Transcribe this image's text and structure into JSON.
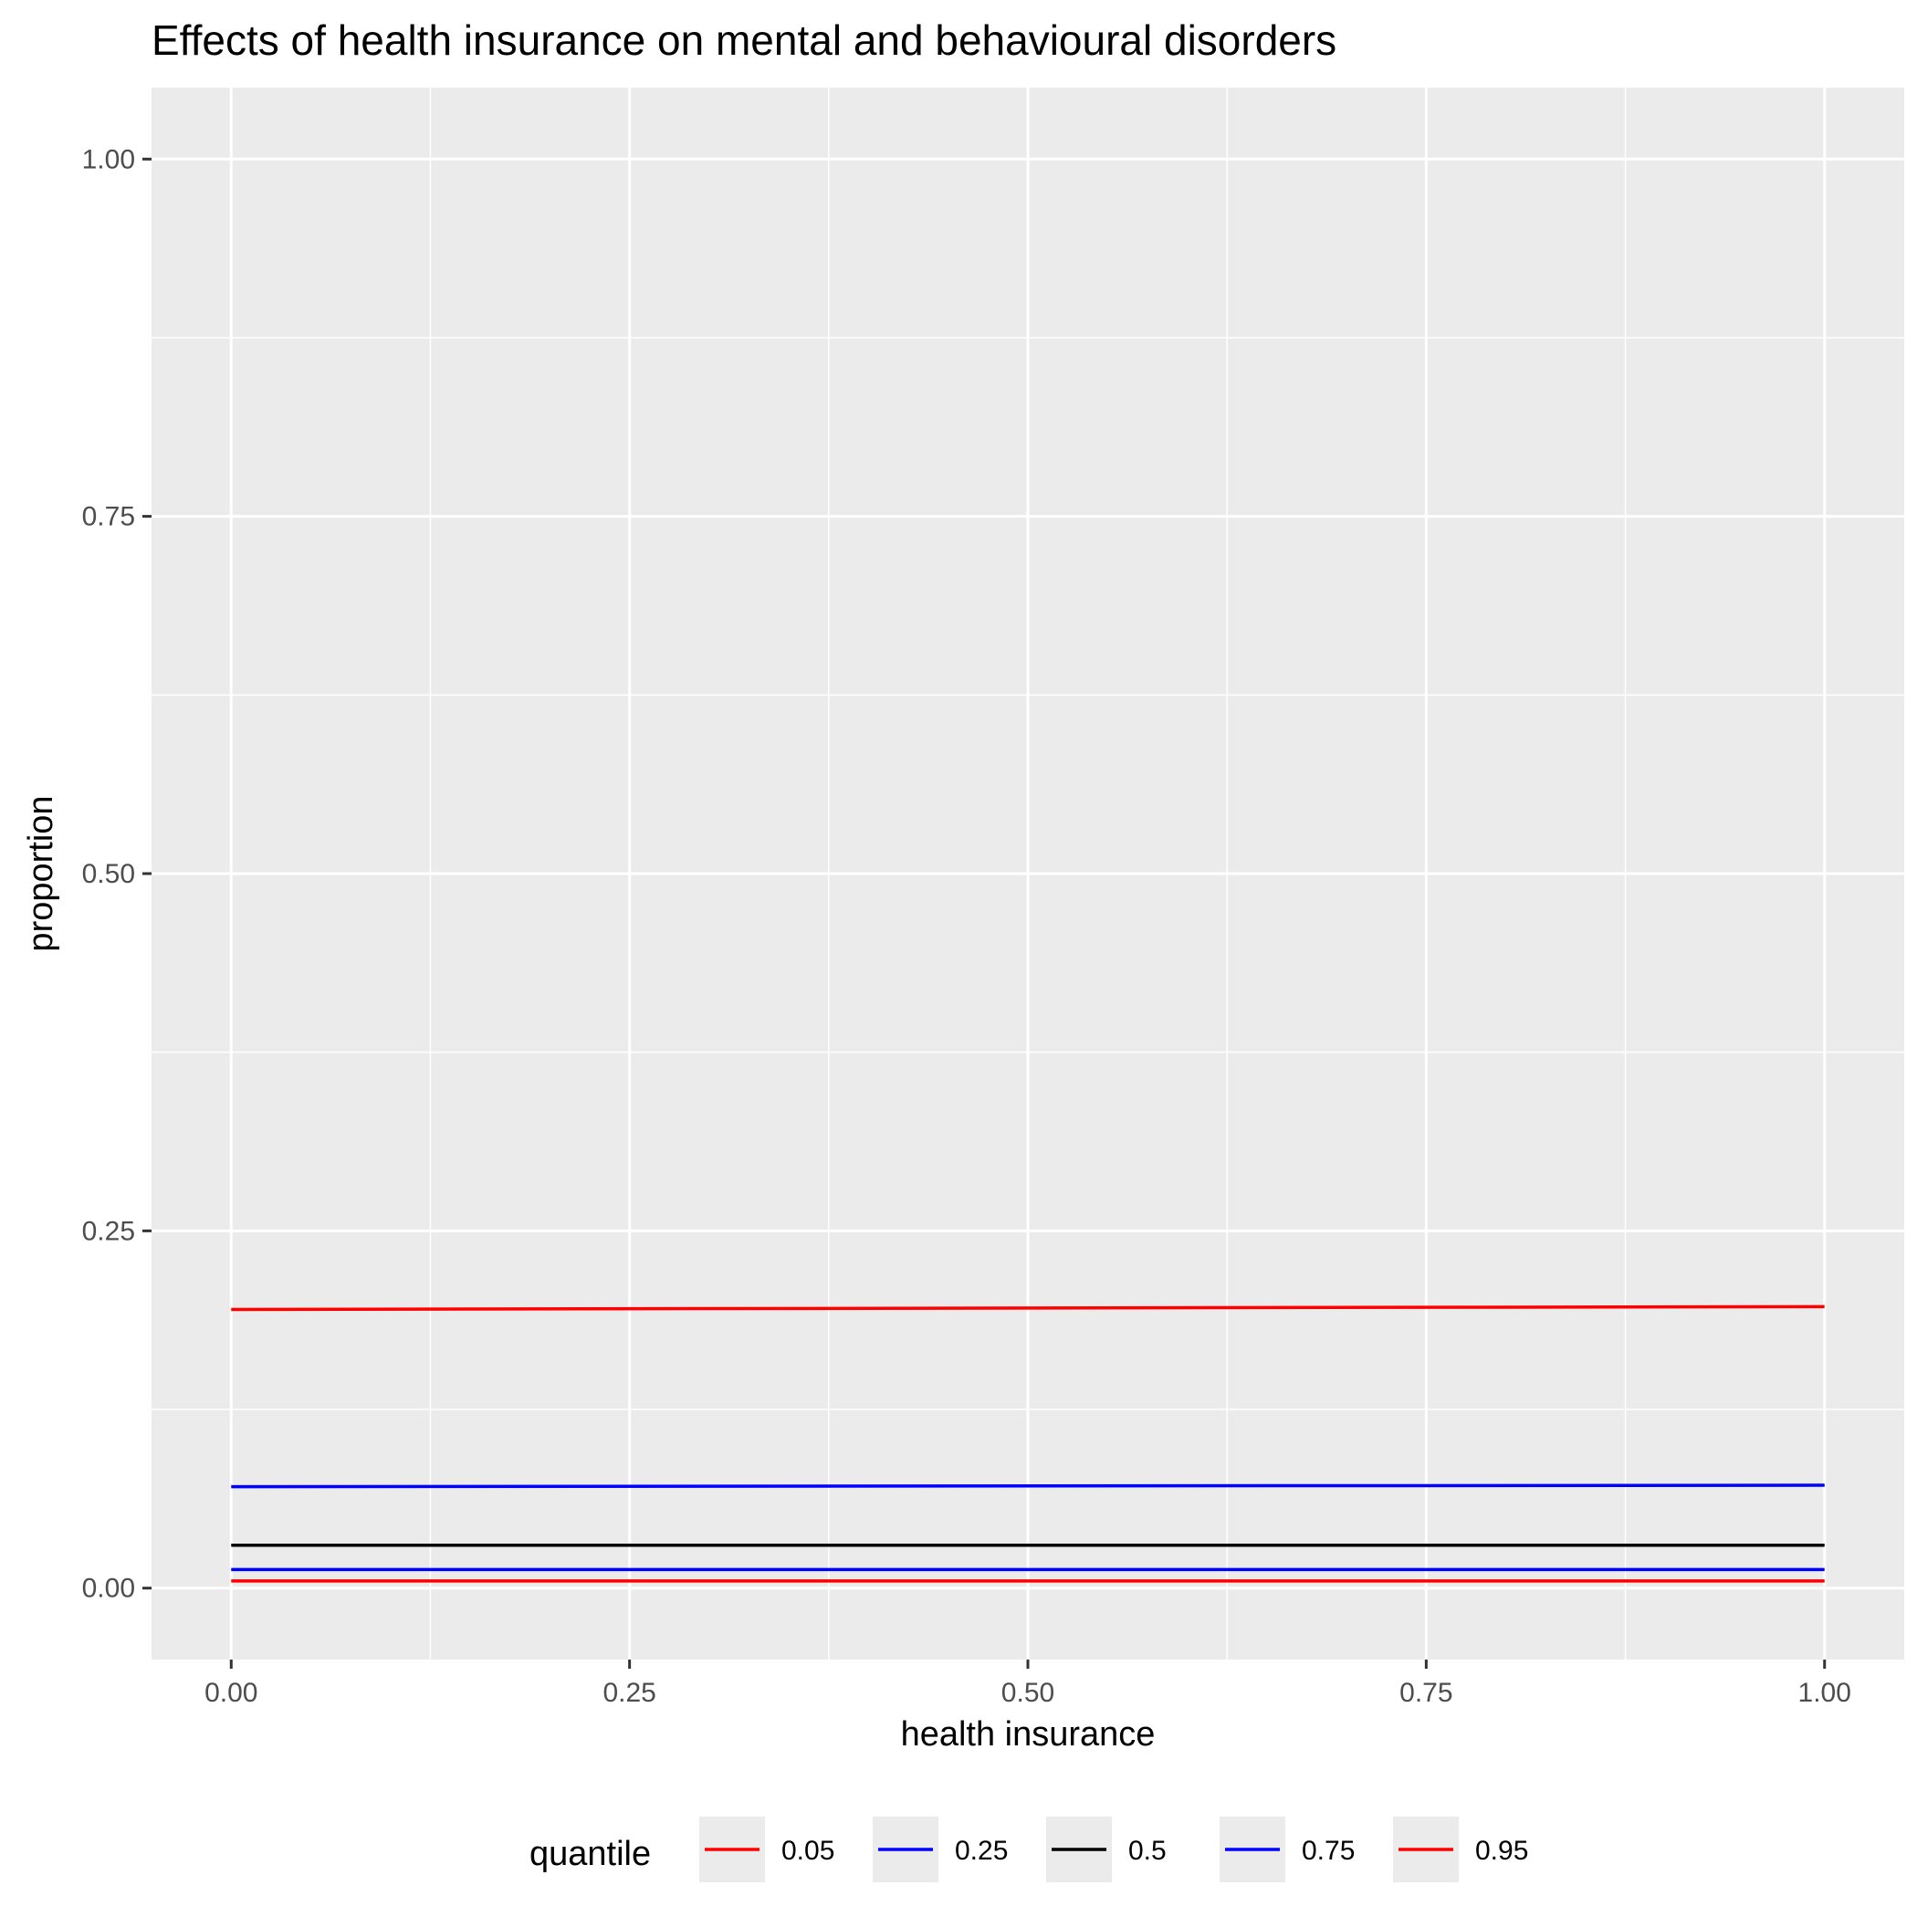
{
  "chart_data": {
    "type": "line",
    "title": "Effects of health insurance on mental and behavioural disorders",
    "xlabel": "health insurance",
    "ylabel": "proportion",
    "xlim": [
      -0.05,
      1.05
    ],
    "ylim": [
      -0.05,
      1.05
    ],
    "x_ticks": [
      0,
      0.25,
      0.5,
      0.75,
      1
    ],
    "x_tick_labels": [
      "0.00",
      "0.25",
      "0.50",
      "0.75",
      "1.00"
    ],
    "y_ticks": [
      0,
      0.25,
      0.5,
      0.75,
      1
    ],
    "y_tick_labels": [
      "0.00",
      "0.25",
      "0.50",
      "0.75",
      "1.00"
    ],
    "grid": true,
    "legend_title": "quantile",
    "legend_position": "bottom",
    "series": [
      {
        "name": "0.05",
        "color": "#ff0000",
        "x": [
          0,
          1
        ],
        "y": [
          0.005,
          0.005
        ]
      },
      {
        "name": "0.25",
        "color": "#0000ff",
        "x": [
          0,
          1
        ],
        "y": [
          0.013,
          0.013
        ]
      },
      {
        "name": "0.5",
        "color": "#000000",
        "x": [
          0,
          1
        ],
        "y": [
          0.03,
          0.03
        ]
      },
      {
        "name": "0.75",
        "color": "#0000ff",
        "x": [
          0,
          1
        ],
        "y": [
          0.071,
          0.072
        ]
      },
      {
        "name": "0.95",
        "color": "#ff0000",
        "x": [
          0,
          1
        ],
        "y": [
          0.195,
          0.197
        ]
      }
    ]
  }
}
